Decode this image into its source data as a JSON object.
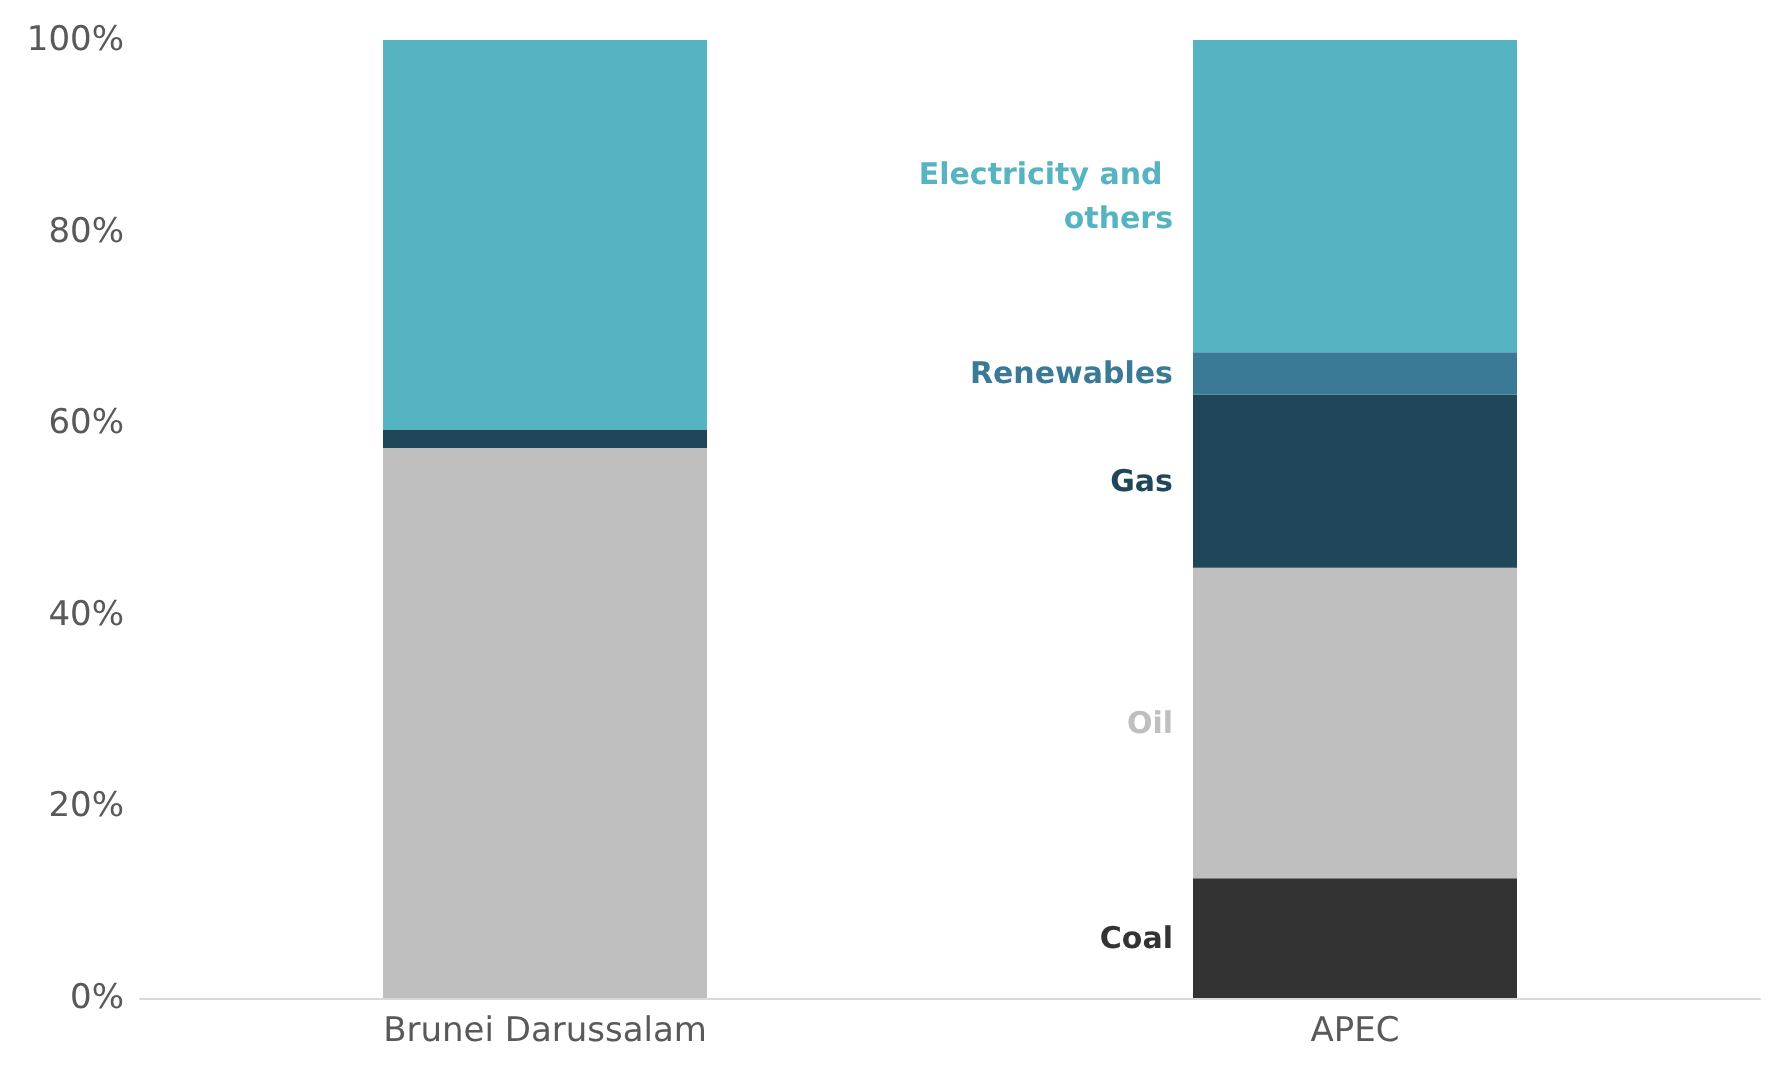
{
  "chart_data": {
    "type": "bar",
    "stacked": true,
    "categories": [
      "Brunei Darussalam",
      "APEC"
    ],
    "series": [
      {
        "name": "Coal",
        "color": "#333333",
        "values": [
          0,
          12.5
        ]
      },
      {
        "name": "Oil",
        "color": "#bfbfbf",
        "values": [
          57.4,
          32.4
        ]
      },
      {
        "name": "Gas",
        "color": "#1f4659",
        "values": [
          1.9,
          18.1
        ]
      },
      {
        "name": "Renewables",
        "color": "#3a7a96",
        "values": [
          0,
          4.4
        ]
      },
      {
        "name": "Electricity and others",
        "color": "#56b3c2",
        "values": [
          40.7,
          32.6
        ]
      }
    ],
    "ylim": [
      0,
      100
    ],
    "yticks": [
      {
        "value": 0,
        "label": "0%"
      },
      {
        "value": 20,
        "label": "20%"
      },
      {
        "value": 40,
        "label": "40%"
      },
      {
        "value": 60,
        "label": "60%"
      },
      {
        "value": 80,
        "label": "80%"
      },
      {
        "value": 100,
        "label": "100%"
      }
    ],
    "grid": false,
    "legend": false
  }
}
